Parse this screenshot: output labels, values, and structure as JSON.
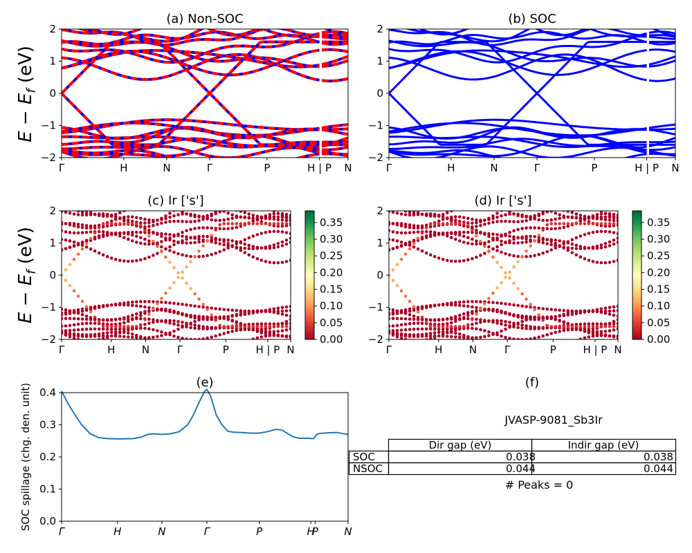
{
  "figure": {
    "a_title": "(a) Non-SOC",
    "b_title": "(b) SOC",
    "c_title": "(c)  Ir ['s']",
    "d_title": "(d) Ir ['s']",
    "e_title": "(e)",
    "f_title": "(f)",
    "energy_label_main": "E − E",
    "energy_label_sub": "f",
    "energy_label_unit": " (eV)",
    "spillage_label": "SOC spillage (chg. den. unit)"
  },
  "chart_data": [
    {
      "id": "a",
      "type": "line",
      "title": "(a) Non-SOC",
      "ylabel": "E − E_f (eV)",
      "ylim": [
        -2,
        2
      ],
      "yticks": [
        "−2",
        "−1",
        "0",
        "1",
        "2"
      ],
      "xticks": [
        "Γ",
        "H",
        "N",
        "Γ",
        "P",
        "H | P",
        "N"
      ],
      "x": [
        0,
        0.217,
        0.367,
        0.517,
        0.717,
        0.9,
        1.0
      ],
      "colors": [
        "#0000ff",
        "#ff0000"
      ]
    },
    {
      "id": "b",
      "type": "line",
      "title": "(b) SOC",
      "ylim": [
        -2,
        2
      ],
      "yticks": [
        "−2",
        "−1",
        "0",
        "1",
        "2"
      ],
      "xticks": [
        "Γ",
        "H",
        "N",
        "Γ",
        "P",
        "H | P",
        "N"
      ],
      "x": [
        0,
        0.217,
        0.367,
        0.517,
        0.717,
        0.9,
        1.0
      ],
      "colors": [
        "#0000ff"
      ]
    },
    {
      "id": "c",
      "type": "scatter",
      "title": "(c)  Ir ['s']",
      "ylabel": "E − E_f (eV)",
      "ylim": [
        -2,
        2
      ],
      "yticks": [
        "−2",
        "−1",
        "0",
        "1",
        "2"
      ],
      "xticks": [
        "Γ",
        "H",
        "N",
        "Γ",
        "P",
        "H | P",
        "N"
      ],
      "x": [
        0,
        0.217,
        0.367,
        0.517,
        0.717,
        0.9,
        1.0
      ],
      "colorbar": {
        "min": 0,
        "max": 0.385,
        "ticks": [
          "0.00",
          "0.05",
          "0.10",
          "0.15",
          "0.20",
          "0.25",
          "0.30",
          "0.35"
        ],
        "colormap": "RdYlGn"
      }
    },
    {
      "id": "d",
      "type": "scatter",
      "title": "(d) Ir ['s']",
      "ylim": [
        -2,
        2
      ],
      "yticks": [
        "−2",
        "−1",
        "0",
        "1",
        "2"
      ],
      "xticks": [
        "Γ",
        "H",
        "N",
        "Γ",
        "P",
        "H | P",
        "N"
      ],
      "x": [
        0,
        0.217,
        0.367,
        0.517,
        0.717,
        0.9,
        1.0
      ],
      "colorbar": {
        "min": 0,
        "max": 0.385,
        "ticks": [
          "0.00",
          "0.05",
          "0.10",
          "0.15",
          "0.20",
          "0.25",
          "0.30",
          "0.35"
        ],
        "colormap": "RdYlGn"
      }
    },
    {
      "id": "e",
      "type": "line",
      "title": "(e)",
      "ylabel": "SOC spillage (chg. den. unit)",
      "ylim": [
        0,
        0.4
      ],
      "yticks": [
        "0.0",
        "0.1",
        "0.2",
        "0.3",
        "0.4"
      ],
      "xticks": [
        "Γ",
        "H",
        "N",
        "Γ",
        "P",
        "H",
        "P",
        "N"
      ],
      "x_ticks_pos": [
        0,
        0.195,
        0.35,
        0.507,
        0.69,
        0.87,
        0.885,
        1.0
      ],
      "series": [
        {
          "color": "#1f77b4",
          "x": [
            0,
            0.02,
            0.04,
            0.07,
            0.1,
            0.13,
            0.16,
            0.2,
            0.25,
            0.28,
            0.3,
            0.32,
            0.35,
            0.38,
            0.41,
            0.44,
            0.46,
            0.48,
            0.5,
            0.507,
            0.52,
            0.54,
            0.56,
            0.58,
            0.6,
            0.63,
            0.66,
            0.69,
            0.72,
            0.75,
            0.77,
            0.79,
            0.81,
            0.83,
            0.86,
            0.88,
            0.89,
            0.9,
            0.93,
            0.96,
            1.0
          ],
          "y": [
            0.405,
            0.37,
            0.34,
            0.3,
            0.272,
            0.26,
            0.257,
            0.256,
            0.257,
            0.262,
            0.27,
            0.272,
            0.27,
            0.272,
            0.278,
            0.3,
            0.33,
            0.37,
            0.405,
            0.41,
            0.39,
            0.33,
            0.3,
            0.28,
            0.277,
            0.276,
            0.274,
            0.274,
            0.279,
            0.286,
            0.283,
            0.272,
            0.262,
            0.258,
            0.258,
            0.257,
            0.27,
            0.273,
            0.275,
            0.276,
            0.27
          ]
        }
      ]
    }
  ],
  "panel_f": {
    "title": "(f)",
    "material": "JVASP-9081_Sb3Ir",
    "table": {
      "headers": [
        "",
        "Dir gap (eV)",
        "Indir gap (eV)"
      ],
      "rows": [
        [
          "SOC",
          "0.038",
          "0.038"
        ],
        [
          "NSOC",
          "0.044",
          "0.044"
        ]
      ]
    },
    "peaks": "# Peaks = 0"
  }
}
